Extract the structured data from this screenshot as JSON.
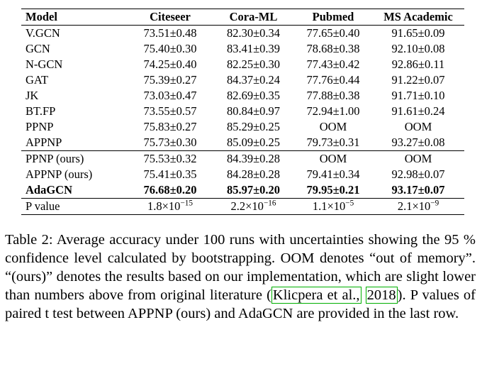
{
  "table": {
    "headers": [
      "Model",
      "Citeseer",
      "Cora-ML",
      "Pubmed",
      "MS Academic"
    ],
    "baseline_rows": [
      {
        "model": "V.GCN",
        "cells": [
          "73.51±0.48",
          "82.30±0.34",
          "77.65±0.40",
          "91.65±0.09"
        ]
      },
      {
        "model": "GCN",
        "cells": [
          "75.40±0.30",
          "83.41±0.39",
          "78.68±0.38",
          "92.10±0.08"
        ]
      },
      {
        "model": "N-GCN",
        "cells": [
          "74.25±0.40",
          "82.25±0.30",
          "77.43±0.42",
          "92.86±0.11"
        ]
      },
      {
        "model": "GAT",
        "cells": [
          "75.39±0.27",
          "84.37±0.24",
          "77.76±0.44",
          "91.22±0.07"
        ]
      },
      {
        "model": "JK",
        "cells": [
          "73.03±0.47",
          "82.69±0.35",
          "77.88±0.38",
          "91.71±0.10"
        ]
      },
      {
        "model": "BT.FP",
        "cells": [
          "73.55±0.57",
          "80.84±0.97",
          "72.94±1.00",
          "91.61±0.24"
        ]
      },
      {
        "model": "PPNP",
        "cells": [
          "75.83±0.27",
          "85.29±0.25",
          "OOM",
          "OOM"
        ]
      },
      {
        "model": "APPNP",
        "cells": [
          "75.73±0.30",
          "85.09±0.25",
          "79.73±0.31",
          "93.27±0.08"
        ]
      }
    ],
    "ours_rows": [
      {
        "model": "PPNP (ours)",
        "cells": [
          "75.53±0.32",
          "84.39±0.28",
          "OOM",
          "OOM"
        ]
      },
      {
        "model": "APPNP (ours)",
        "cells": [
          "75.41±0.35",
          "84.28±0.28",
          "79.41±0.34",
          "92.98±0.07"
        ]
      },
      {
        "model": "AdaGCN",
        "cells": [
          "76.68±0.20",
          "85.97±0.20",
          "79.95±0.21",
          "93.17±0.07"
        ]
      }
    ],
    "p_row": {
      "label": "P value",
      "values": [
        {
          "base": "1.8×10",
          "exp": "−15"
        },
        {
          "base": "2.2×10",
          "exp": "−16"
        },
        {
          "base": "1.1×10",
          "exp": "−5"
        },
        {
          "base": "2.1×10",
          "exp": "−9"
        }
      ]
    }
  },
  "caption": {
    "text_before_cite": "Table 2: Average accuracy under 100 runs with uncertainties showing the 95 % confidence level calculated by bootstrapping. OOM denotes “out of memory”. “(ours)” denotes the results based on our implementation, which are slight lower than numbers above from original literature (",
    "cite_name": "Klicpera et al.,",
    "cite_space": " ",
    "cite_year": "2018",
    "text_after_cite": "). P values of paired t test between APPNP (ours) and AdaGCN are provided in the last row."
  },
  "colors": {
    "citation_box": "#00b000"
  }
}
